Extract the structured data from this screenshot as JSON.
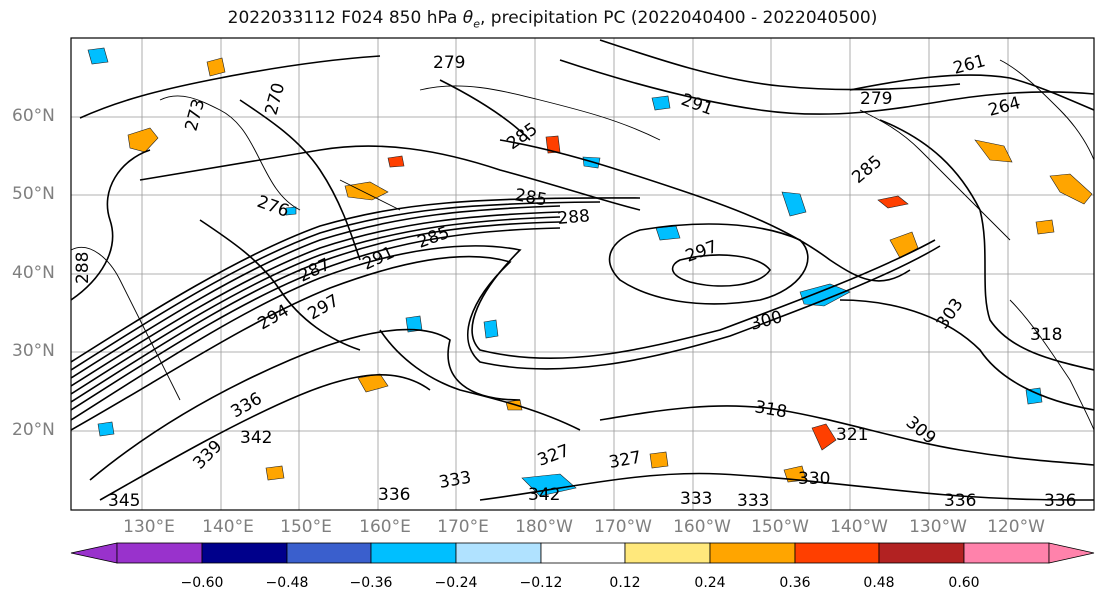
{
  "title_prefix": "2022033112 F024 850 hPa ",
  "title_symbol_main": "θ",
  "title_symbol_sub": "e",
  "title_suffix": ", precipitation PC (2022040400 - 2022040500)",
  "lat_labels": [
    "60°N",
    "50°N",
    "40°N",
    "30°N",
    "20°N"
  ],
  "lon_labels": [
    "130°E",
    "140°E",
    "150°E",
    "160°E",
    "170°E",
    "180°W",
    "170°W",
    "160°W",
    "150°W",
    "140°W",
    "130°W",
    "120°W"
  ],
  "contour_labels": [
    "279",
    "273",
    "270",
    "285",
    "291",
    "279",
    "261",
    "264",
    "276",
    "285",
    "288",
    "285",
    "297",
    "285",
    "287",
    "291",
    "294",
    "297",
    "300",
    "303",
    "318",
    "318",
    "309",
    "327",
    "342",
    "336",
    "339",
    "345",
    "342",
    "333",
    "336",
    "333",
    "333",
    "330",
    "327",
    "321",
    "336",
    "336",
    "288"
  ],
  "colorbar": {
    "tick_labels": [
      "−0.60",
      "−0.48",
      "−0.36",
      "−0.24",
      "−0.12",
      "0.12",
      "0.24",
      "0.36",
      "0.48",
      "0.60"
    ],
    "colors": [
      "#9932cc",
      "#00008b",
      "#3a5fcd",
      "#00bfff",
      "#b0e2ff",
      "#ffffff",
      "#ffe87c",
      "#ffa500",
      "#ff3f00",
      "#b22222",
      "#ff82ab"
    ]
  }
}
